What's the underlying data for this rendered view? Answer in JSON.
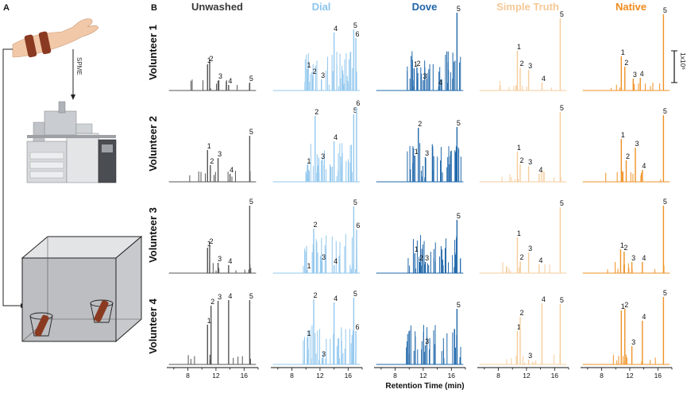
{
  "panel_a": {
    "letter": "A",
    "arrow_label": "SPME"
  },
  "panel_b": {
    "letter": "B",
    "x_axis_title": "Retention Time (min)",
    "x_ticks": [
      "8",
      "12",
      "16"
    ],
    "x_tick_values": [
      8,
      12,
      16
    ],
    "x_range": [
      5,
      18
    ],
    "scale_bar_label": "1x10⁶",
    "columns": [
      {
        "name": "Unwashed",
        "color": "#3a3a3a",
        "trace": "#555555"
      },
      {
        "name": "Dial",
        "color": "#8cc4ee",
        "trace": "#93c8ee"
      },
      {
        "name": "Dove",
        "color": "#1f64a8",
        "trace": "#2168ab"
      },
      {
        "name": "Simple Truth",
        "color": "#f5c896",
        "trace": "#f6cc9c"
      },
      {
        "name": "Native",
        "color": "#ee8a1c",
        "trace": "#ef9226"
      }
    ],
    "rows": [
      "Volunteer 1",
      "Volunteer 2",
      "Volunteer 3",
      "Volunteer 4"
    ],
    "chart_data": [
      {
        "row": "Volunteer 1",
        "column": "Unwashed",
        "peaks": [
          {
            "label": "1",
            "rt": 10.8,
            "h": 0.33
          },
          {
            "label": "2",
            "rt": 11.1,
            "h": 0.35
          },
          {
            "label": "3",
            "rt": 12.4,
            "h": 0.13
          },
          {
            "label": "4",
            "rt": 13.8,
            "h": 0.07
          },
          {
            "label": "5",
            "rt": 16.8,
            "h": 0.1
          }
        ]
      },
      {
        "row": "Volunteer 1",
        "column": "Dial",
        "peaks": [
          {
            "label": "1",
            "rt": 10.2,
            "h": 0.27
          },
          {
            "label": "2",
            "rt": 11.0,
            "h": 0.19
          },
          {
            "label": "3",
            "rt": 12.2,
            "h": 0.14
          },
          {
            "label": "4",
            "rt": 14.0,
            "h": 0.73
          },
          {
            "label": "5",
            "rt": 16.8,
            "h": 0.77
          },
          {
            "label": "6",
            "rt": 17.1,
            "h": 0.66
          }
        ]
      },
      {
        "row": "Volunteer 1",
        "column": "Dove",
        "peaks": [
          {
            "label": "1",
            "rt": 10.7,
            "h": 0.28
          },
          {
            "label": "2",
            "rt": 11.1,
            "h": 0.29
          },
          {
            "label": "3",
            "rt": 12.0,
            "h": 0.13
          },
          {
            "label": "4",
            "rt": 14.2,
            "h": 0.05
          },
          {
            "label": "5",
            "rt": 16.8,
            "h": 0.98
          }
        ]
      },
      {
        "row": "Volunteer 1",
        "column": "Simple Truth",
        "peaks": [
          {
            "label": "1",
            "rt": 10.7,
            "h": 0.5
          },
          {
            "label": "2",
            "rt": 11.1,
            "h": 0.29
          },
          {
            "label": "3",
            "rt": 12.3,
            "h": 0.26
          },
          {
            "label": "4",
            "rt": 14.2,
            "h": 0.1
          },
          {
            "label": "5",
            "rt": 16.8,
            "h": 0.91
          }
        ]
      },
      {
        "row": "Volunteer 1",
        "column": "Native",
        "peaks": [
          {
            "label": "1",
            "rt": 10.8,
            "h": 0.43
          },
          {
            "label": "2",
            "rt": 11.3,
            "h": 0.3
          },
          {
            "label": "3",
            "rt": 12.5,
            "h": 0.15
          },
          {
            "label": "4",
            "rt": 13.5,
            "h": 0.16
          },
          {
            "label": "5",
            "rt": 16.8,
            "h": 0.96
          }
        ]
      },
      {
        "row": "Volunteer 2",
        "column": "Unwashed",
        "peaks": [
          {
            "label": "1",
            "rt": 10.8,
            "h": 0.4
          },
          {
            "label": "2",
            "rt": 11.2,
            "h": 0.21
          },
          {
            "label": "3",
            "rt": 12.3,
            "h": 0.3
          },
          {
            "label": "4",
            "rt": 14.0,
            "h": 0.1
          },
          {
            "label": "5",
            "rt": 16.8,
            "h": 0.58
          }
        ]
      },
      {
        "row": "Volunteer 2",
        "column": "Dial",
        "peaks": [
          {
            "label": "1",
            "rt": 10.2,
            "h": 0.21
          },
          {
            "label": "2",
            "rt": 11.3,
            "h": 0.83
          },
          {
            "label": "3",
            "rt": 12.2,
            "h": 0.27
          },
          {
            "label": "4",
            "rt": 14.0,
            "h": 0.51
          },
          {
            "label": "5",
            "rt": 16.8,
            "h": 0.85
          },
          {
            "label": "6",
            "rt": 17.2,
            "h": 0.94
          }
        ]
      },
      {
        "row": "Volunteer 2",
        "column": "Dove",
        "peaks": [
          {
            "label": "1",
            "rt": 10.8,
            "h": 0.33
          },
          {
            "label": "2",
            "rt": 11.3,
            "h": 0.68
          },
          {
            "label": "3",
            "rt": 12.3,
            "h": 0.31
          },
          {
            "label": "5",
            "rt": 16.8,
            "h": 0.69
          }
        ]
      },
      {
        "row": "Volunteer 2",
        "column": "Simple Truth",
        "peaks": [
          {
            "label": "1",
            "rt": 10.7,
            "h": 0.38
          },
          {
            "label": "2",
            "rt": 11.1,
            "h": 0.22
          },
          {
            "label": "3",
            "rt": 12.3,
            "h": 0.2
          },
          {
            "label": "4",
            "rt": 13.8,
            "h": 0.1
          },
          {
            "label": "5",
            "rt": 16.8,
            "h": 0.88
          }
        ]
      },
      {
        "row": "Volunteer 2",
        "column": "Native",
        "peaks": [
          {
            "label": "1",
            "rt": 10.8,
            "h": 0.54
          },
          {
            "label": "2",
            "rt": 11.5,
            "h": 0.27
          },
          {
            "label": "3",
            "rt": 12.8,
            "h": 0.43
          },
          {
            "label": "4",
            "rt": 13.8,
            "h": 0.15
          },
          {
            "label": "5",
            "rt": 16.8,
            "h": 0.84
          }
        ]
      },
      {
        "row": "Volunteer 3",
        "column": "Unwashed",
        "peaks": [
          {
            "label": "1",
            "rt": 10.8,
            "h": 0.32
          },
          {
            "label": "2",
            "rt": 11.1,
            "h": 0.35
          },
          {
            "label": "3",
            "rt": 12.3,
            "h": 0.13
          },
          {
            "label": "4",
            "rt": 13.8,
            "h": 0.1
          },
          {
            "label": "5",
            "rt": 16.8,
            "h": 0.85
          }
        ]
      },
      {
        "row": "Volunteer 3",
        "column": "Dial",
        "peaks": [
          {
            "label": "1",
            "rt": 10.2,
            "h": 0.04
          },
          {
            "label": "2",
            "rt": 11.1,
            "h": 0.56
          },
          {
            "label": "3",
            "rt": 12.3,
            "h": 0.15
          },
          {
            "label": "4",
            "rt": 14.0,
            "h": 0.1
          },
          {
            "label": "5",
            "rt": 16.8,
            "h": 0.84
          },
          {
            "label": "6",
            "rt": 17.2,
            "h": 0.55
          }
        ]
      },
      {
        "row": "Volunteer 3",
        "column": "Dove",
        "peaks": [
          {
            "label": "1",
            "rt": 10.8,
            "h": 0.25
          },
          {
            "label": "2",
            "rt": 11.5,
            "h": 0.14
          },
          {
            "label": "3",
            "rt": 12.3,
            "h": 0.14
          },
          {
            "label": "5",
            "rt": 16.8,
            "h": 0.67
          }
        ]
      },
      {
        "row": "Volunteer 3",
        "column": "Simple Truth",
        "peaks": [
          {
            "label": "1",
            "rt": 10.7,
            "h": 0.45
          },
          {
            "label": "2",
            "rt": 11.1,
            "h": 0.15
          },
          {
            "label": "3",
            "rt": 12.3,
            "h": 0.26
          },
          {
            "label": "4",
            "rt": 13.8,
            "h": 0.11
          },
          {
            "label": "5",
            "rt": 16.8,
            "h": 0.83
          }
        ]
      },
      {
        "row": "Volunteer 3",
        "column": "Native",
        "peaks": [
          {
            "label": "1",
            "rt": 10.7,
            "h": 0.3
          },
          {
            "label": "2",
            "rt": 11.2,
            "h": 0.27
          },
          {
            "label": "3",
            "rt": 12.3,
            "h": 0.14
          },
          {
            "label": "4",
            "rt": 13.8,
            "h": 0.14
          },
          {
            "label": "5",
            "rt": 16.8,
            "h": 0.85
          }
        ]
      },
      {
        "row": "Volunteer 4",
        "column": "Unwashed",
        "peaks": [
          {
            "label": "1",
            "rt": 10.8,
            "h": 0.5
          },
          {
            "label": "2",
            "rt": 11.3,
            "h": 0.74
          },
          {
            "label": "3",
            "rt": 12.3,
            "h": 0.8
          },
          {
            "label": "4",
            "rt": 13.8,
            "h": 0.81
          },
          {
            "label": "5",
            "rt": 16.8,
            "h": 0.81
          }
        ]
      },
      {
        "row": "Volunteer 4",
        "column": "Dial",
        "peaks": [
          {
            "label": "1",
            "rt": 10.2,
            "h": 0.34
          },
          {
            "label": "2",
            "rt": 11.1,
            "h": 0.82
          },
          {
            "label": "3",
            "rt": 12.3,
            "h": 0.08
          },
          {
            "label": "4",
            "rt": 14.0,
            "h": 0.78
          },
          {
            "label": "5",
            "rt": 16.8,
            "h": 0.84
          },
          {
            "label": "6",
            "rt": 17.1,
            "h": 0.42
          }
        ]
      },
      {
        "row": "Volunteer 4",
        "column": "Dove",
        "peaks": [
          {
            "label": "3",
            "rt": 12.3,
            "h": 0.24
          },
          {
            "label": "5",
            "rt": 16.8,
            "h": 0.7
          }
        ]
      },
      {
        "row": "Volunteer 4",
        "column": "Simple Truth",
        "peaks": [
          {
            "label": "1",
            "rt": 10.7,
            "h": 0.42
          },
          {
            "label": "2",
            "rt": 11.1,
            "h": 0.6
          },
          {
            "label": "3",
            "rt": 12.3,
            "h": 0.06
          },
          {
            "label": "4",
            "rt": 14.2,
            "h": 0.77
          },
          {
            "label": "5",
            "rt": 16.8,
            "h": 0.76
          }
        ]
      },
      {
        "row": "Volunteer 4",
        "column": "Native",
        "peaks": [
          {
            "label": "1",
            "rt": 10.8,
            "h": 0.68
          },
          {
            "label": "2",
            "rt": 11.3,
            "h": 0.7
          },
          {
            "label": "3",
            "rt": 12.3,
            "h": 0.23
          },
          {
            "label": "4",
            "rt": 13.8,
            "h": 0.55
          },
          {
            "label": "5",
            "rt": 16.8,
            "h": 0.85
          }
        ]
      }
    ]
  }
}
